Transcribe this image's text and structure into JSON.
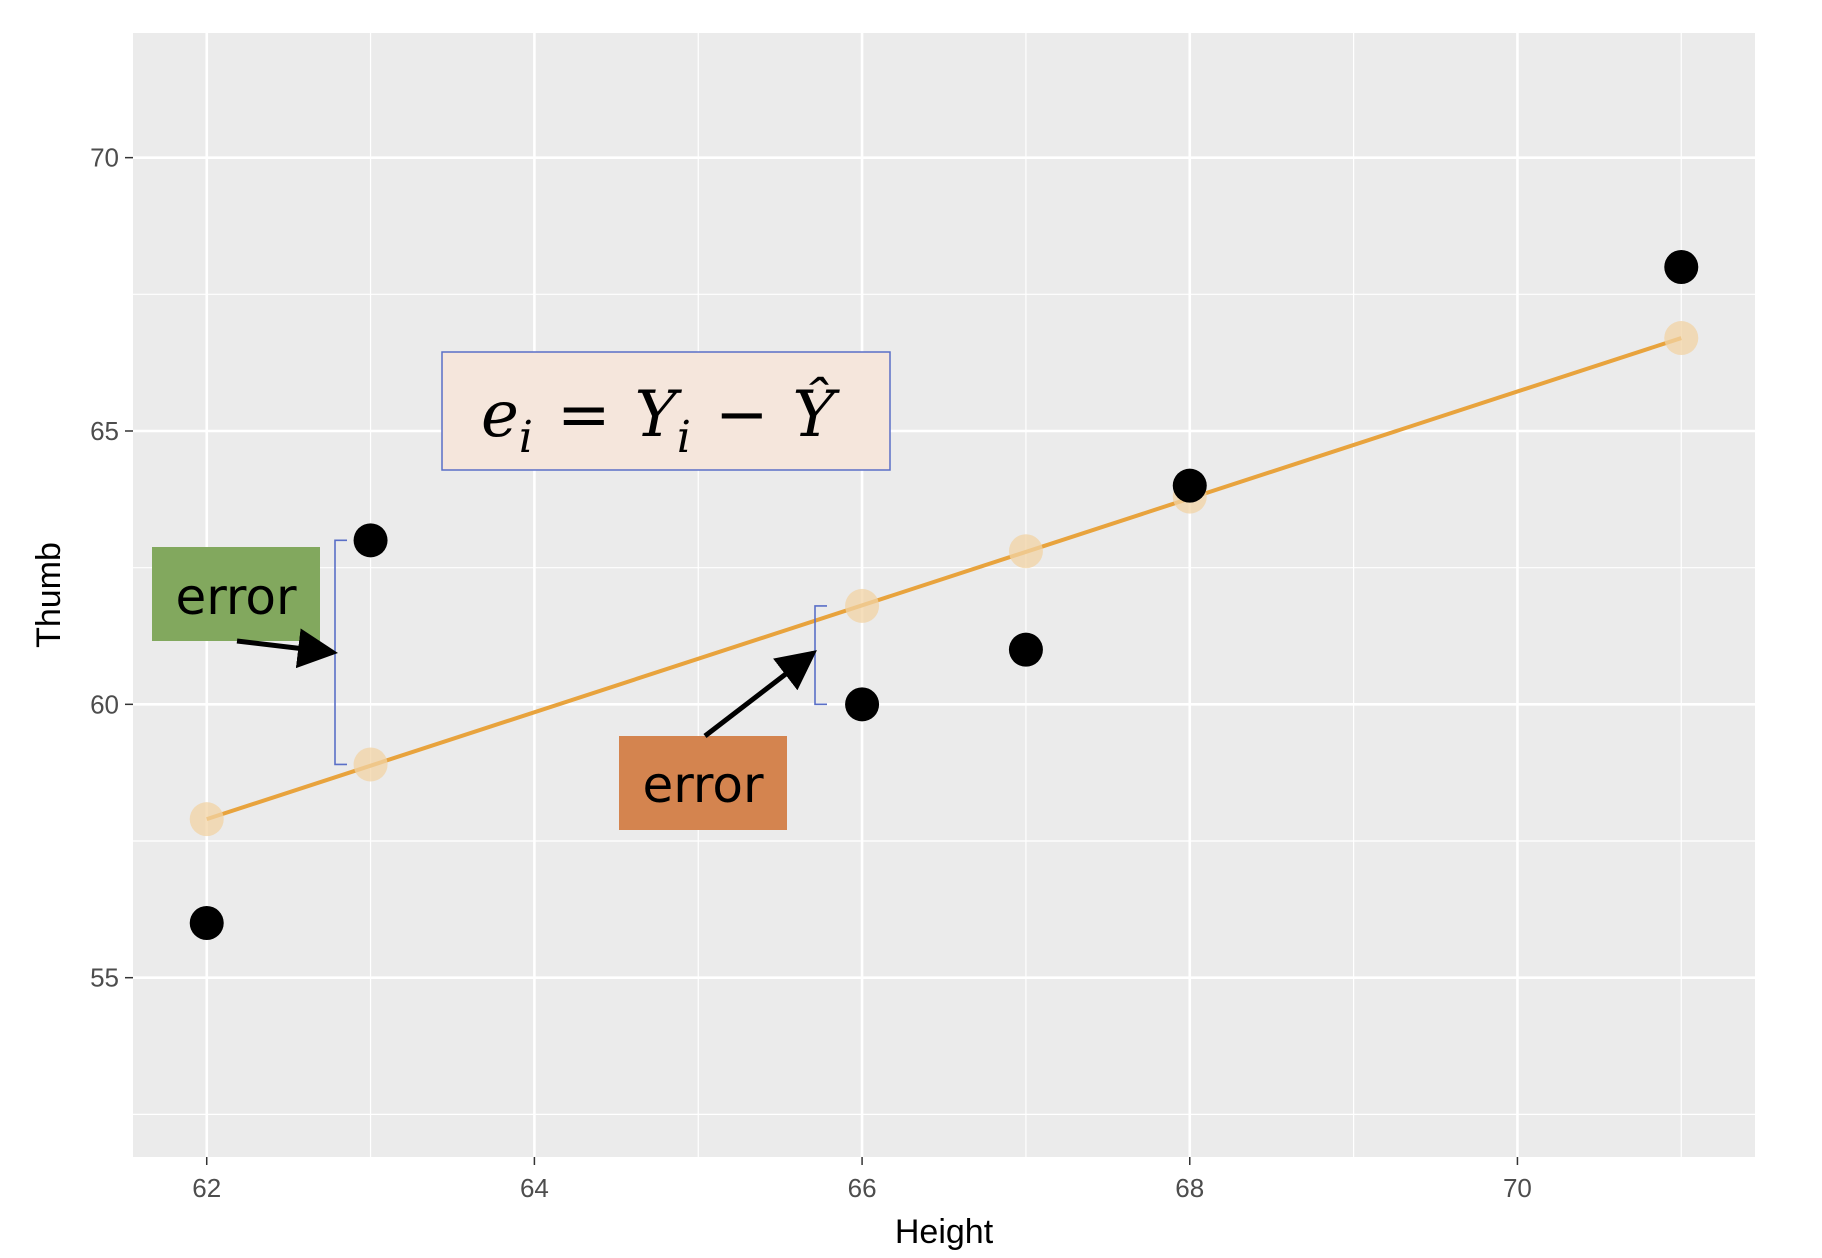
{
  "chart_data": {
    "type": "scatter",
    "xlabel": "Height",
    "ylabel": "Thumb",
    "xlim": [
      61.55,
      71.45
    ],
    "ylim": [
      51.72,
      72.28
    ],
    "x_ticks": [
      62,
      64,
      66,
      68,
      70
    ],
    "y_ticks": [
      55,
      60,
      65,
      70
    ],
    "grid": true,
    "panel_color": "#ebebeb",
    "observed": {
      "color": "#000000",
      "points": [
        {
          "x": 62,
          "y": 56
        },
        {
          "x": 63,
          "y": 63
        },
        {
          "x": 66,
          "y": 60
        },
        {
          "x": 67,
          "y": 61
        },
        {
          "x": 68,
          "y": 64
        },
        {
          "x": 71,
          "y": 68
        }
      ]
    },
    "predicted": {
      "color": "#f2d3a4",
      "points": [
        {
          "x": 62,
          "y": 57.9
        },
        {
          "x": 63,
          "y": 58.9
        },
        {
          "x": 66,
          "y": 61.8
        },
        {
          "x": 67,
          "y": 62.8
        },
        {
          "x": 68,
          "y": 63.8
        },
        {
          "x": 71,
          "y": 66.7
        }
      ]
    },
    "regression_line": {
      "color": "#e8a33d",
      "x": [
        62,
        71
      ],
      "y": [
        57.9,
        66.7
      ]
    },
    "annotations": [
      {
        "text": "error",
        "box_color": "#82a85e",
        "x": 63,
        "y_from": 63,
        "y_to": 58.9
      },
      {
        "text": "error",
        "box_color": "#d4844f",
        "x": 66,
        "y_from": 61.8,
        "y_to": 60
      }
    ],
    "formula": {
      "box_fill": "#f5e6dc",
      "box_stroke": "#5a6fc7",
      "lhs": "e",
      "lhs_sub": "i",
      "equals": "=",
      "y": "Y",
      "y_sub": "i",
      "minus": "−",
      "yhat": "Ŷ"
    }
  }
}
